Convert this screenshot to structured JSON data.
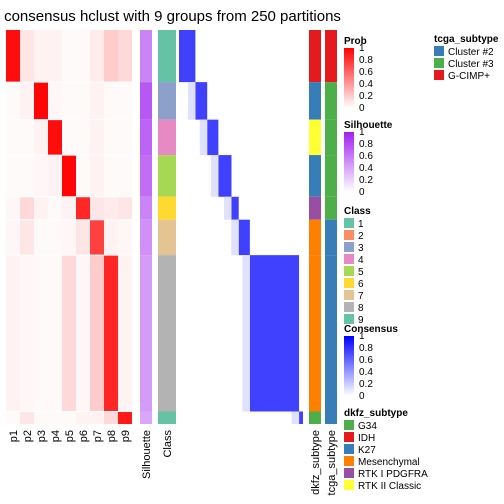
{
  "chart_data": {
    "type": "heatmap",
    "title": "consensus hclust with 9 groups from 250 partitions",
    "membership_columns": [
      "p1",
      "p2",
      "p3",
      "p4",
      "p5",
      "p6",
      "p7",
      "p8",
      "p9"
    ],
    "annotation_columns": [
      "Silhouette",
      "Class"
    ],
    "right_annotation_columns": [
      "dkfz_subtype",
      "tcga_subtype"
    ],
    "groups": [
      {
        "class": "1",
        "dkfz": "IDH",
        "tcga": "G-CIMP+",
        "silhouette": 0.55,
        "membership": [
          0.95,
          0.1,
          0.05,
          0.05,
          0.02,
          0.02,
          0.08,
          0.2,
          0.15
        ]
      },
      {
        "class": "3",
        "dkfz": "K27",
        "tcga": "Cluster #3",
        "silhouette": 0.75,
        "membership": [
          0.02,
          0.05,
          0.98,
          0.03,
          0.02,
          0.02,
          0.05,
          0.02,
          0.02
        ]
      },
      {
        "class": "4",
        "dkfz": "RTK II Classic",
        "tcga": "Cluster #3",
        "silhouette": 0.7,
        "membership": [
          0.02,
          0.02,
          0.05,
          0.95,
          0.02,
          0.02,
          0.05,
          0.02,
          0.02
        ]
      },
      {
        "class": "5",
        "dkfz": "K27",
        "tcga": "Cluster #3",
        "silhouette": 0.65,
        "membership": [
          0.02,
          0.02,
          0.03,
          0.05,
          0.98,
          0.02,
          0.05,
          0.02,
          0.02
        ]
      },
      {
        "class": "6",
        "dkfz": "RTK I PDGFRA",
        "tcga": "Cluster #3",
        "silhouette": 0.55,
        "membership": [
          0.03,
          0.15,
          0.05,
          0.02,
          0.05,
          0.85,
          0.1,
          0.08,
          0.1
        ]
      },
      {
        "class": "7",
        "dkfz": "Mesenchymal",
        "tcga": "Cluster #2",
        "silhouette": 0.5,
        "membership": [
          0.03,
          0.1,
          0.02,
          0.02,
          0.03,
          0.1,
          0.75,
          0.05,
          0.03
        ]
      },
      {
        "class": "8",
        "dkfz": "Mesenchymal",
        "tcga": "Cluster #2",
        "silhouette": 0.45,
        "membership": [
          0.05,
          0.03,
          0.02,
          0.02,
          0.15,
          0.03,
          0.2,
          0.85,
          0.05
        ]
      },
      {
        "class": "9",
        "dkfz": "G34",
        "tcga": "Cluster #2",
        "silhouette": 0.4,
        "membership": [
          0.02,
          0.1,
          0.02,
          0.02,
          0.02,
          0.05,
          0.05,
          0.15,
          0.9
        ]
      }
    ],
    "colors": {
      "prob": [
        "#ffffff",
        "#ff0000"
      ],
      "silhouette": [
        "#ffffff",
        "#a020f0"
      ],
      "consensus": [
        "#ffffff",
        "#0000ff"
      ],
      "class": {
        "1": "#66C2A5",
        "2": "#FC8D62",
        "3": "#8DA0CB",
        "4": "#E78AC3",
        "5": "#A6D854",
        "6": "#FFD92F",
        "7": "#E5C494",
        "8": "#B3B3B3",
        "9": "#66C2A5"
      },
      "dkfz": {
        "G34": "#4DAF4A",
        "IDH": "#E41A1C",
        "K27": "#377EB8",
        "Mesenchymal": "#FF7F00",
        "RTK I PDGFRA": "#984EA3",
        "RTK II Classic": "#FFFF33"
      },
      "tcga": {
        "Cluster #2": "#377EB8",
        "Cluster #3": "#4DAF4A",
        "G-CIMP+": "#E41A1C"
      }
    },
    "legends": {
      "tcga_subtype": {
        "title": "tcga_subtype",
        "items": [
          "Cluster #2",
          "Cluster #3",
          "G-CIMP+"
        ]
      },
      "prob": {
        "title": "Prob",
        "ticks": [
          "1",
          "0.8",
          "0.6",
          "0.4",
          "0.2",
          "0"
        ]
      },
      "silhouette": {
        "title": "Silhouette",
        "ticks": [
          "1",
          "0.8",
          "0.6",
          "0.4",
          "0.2",
          "0"
        ]
      },
      "class": {
        "title": "Class",
        "items": [
          "1",
          "2",
          "3",
          "4",
          "5",
          "6",
          "7",
          "8",
          "9"
        ]
      },
      "consensus": {
        "title": "Consensus",
        "ticks": [
          "1",
          "0.8",
          "0.6",
          "0.4",
          "0.2",
          "0"
        ]
      },
      "dkfz_subtype": {
        "title": "dkfz_subtype",
        "items": [
          "G34",
          "IDH",
          "K27",
          "Mesenchymal",
          "RTK I PDGFRA",
          "RTK II Classic"
        ]
      }
    }
  }
}
